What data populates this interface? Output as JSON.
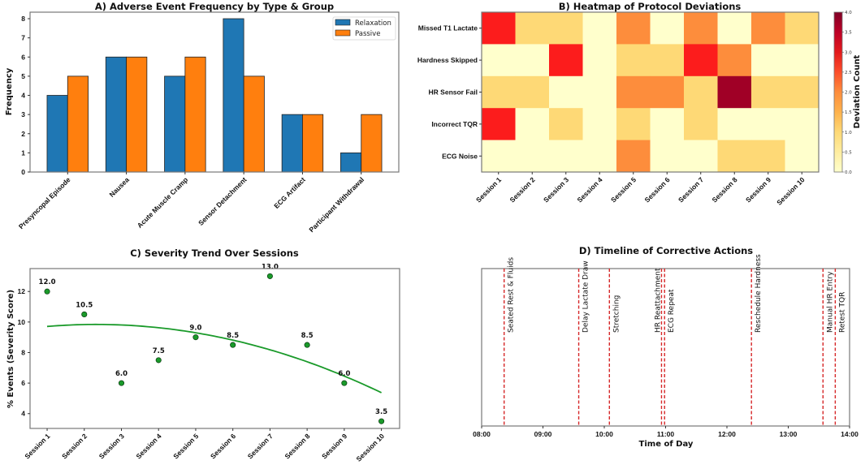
{
  "chart_data": [
    {
      "type": "bar",
      "title": "A) Adverse Event Frequency by Type & Group",
      "xlabel": "",
      "ylabel": "Frequency",
      "categories": [
        "Presyncopal Episode",
        "Nausea",
        "Acute Muscle Cramp",
        "Sensor Detachment",
        "ECG Artifact",
        "Participant Withdrawal"
      ],
      "series": [
        {
          "name": "Relaxation",
          "values": [
            4,
            6,
            5,
            8,
            3,
            1
          ],
          "color": "#1f77b4"
        },
        {
          "name": "Passive",
          "values": [
            5,
            6,
            6,
            5,
            3,
            3
          ],
          "color": "#ff7f0e"
        }
      ],
      "ylim": [
        0,
        8.34
      ],
      "yticks": [
        0,
        1,
        2,
        3,
        4,
        5,
        6,
        7,
        8
      ],
      "legend": "top-right",
      "grid": false
    },
    {
      "type": "heatmap",
      "title": "B) Heatmap of Protocol Deviations",
      "rows": [
        "Missed T1 Lactate",
        "Hardness Skipped",
        "HR Sensor Fail",
        "Incorrect TQR",
        "ECG Noise"
      ],
      "columns": [
        "Session 1",
        "Session 2",
        "Session 3",
        "Session 4",
        "Session 5",
        "Session 6",
        "Session 7",
        "Session 8",
        "Session 9",
        "Session 10"
      ],
      "values": [
        [
          3,
          1,
          1,
          0,
          2,
          0,
          2,
          0,
          2,
          1
        ],
        [
          0,
          0,
          3,
          0,
          1,
          1,
          3,
          2,
          0,
          0
        ],
        [
          1,
          1,
          0,
          0,
          2,
          2,
          1,
          4,
          1,
          1
        ],
        [
          3,
          0,
          1,
          0,
          1,
          0,
          1,
          0,
          0,
          0
        ],
        [
          0,
          0,
          0,
          0,
          2,
          0,
          0,
          1,
          1,
          0
        ]
      ],
      "colorbar_label": "Deviation Count",
      "colorbar_range": [
        0,
        4
      ],
      "colorbar_ticks": [
        "0.0",
        "0.5",
        "1.0",
        "1.5",
        "2.0",
        "2.5",
        "3.0",
        "3.5",
        "4.0"
      ],
      "colormap": [
        "#ffffcc",
        "#fed976",
        "#fd8d3c",
        "#fc1c1c",
        "#a00026"
      ]
    },
    {
      "type": "scatter",
      "title": "C) Severity Trend Over Sessions",
      "xlabel": "",
      "ylabel": "% Events (Severity Score)",
      "categories": [
        "Session 1",
        "Session 2",
        "Session 3",
        "Session 4",
        "Session 5",
        "Session 6",
        "Session 7",
        "Session 8",
        "Session 9",
        "Session 10"
      ],
      "values": [
        12.0,
        10.5,
        6.0,
        7.5,
        9.0,
        8.5,
        13.0,
        8.5,
        6.0,
        3.5
      ],
      "data_labels": [
        "12.0",
        "10.5",
        "6.0",
        "7.5",
        "9.0",
        "8.5",
        "13.0",
        "8.5",
        "6.0",
        "3.5"
      ],
      "trendline": "quadratic",
      "ylim": [
        3.03,
        13.5
      ],
      "yticks": [
        4,
        6,
        8,
        10,
        12
      ],
      "point_color": "#1a9a2a",
      "line_color": "#1a9a2a",
      "grid": false
    },
    {
      "type": "timeline",
      "title": "D) Timeline of Corrective Actions",
      "xlabel": "Time of Day",
      "xlim": [
        "08:00",
        "14:00"
      ],
      "xticks": [
        "08:00",
        "09:00",
        "10:00",
        "11:00",
        "12:00",
        "13:00",
        "14:00"
      ],
      "events": [
        {
          "time": "08:22",
          "label": "Seated Rest & Fluids"
        },
        {
          "time": "09:35",
          "label": "Delay Lactate Draw"
        },
        {
          "time": "10:05",
          "label": "Stretching"
        },
        {
          "time": "10:56",
          "label": "HR Reattachment"
        },
        {
          "time": "10:59",
          "label": "ECG Repeat"
        },
        {
          "time": "12:24",
          "label": "Reschedule Hardness"
        },
        {
          "time": "13:34",
          "label": "Manual HR Entry"
        },
        {
          "time": "13:46",
          "label": "Retest TQR"
        }
      ],
      "line_color": "#d62728"
    }
  ]
}
